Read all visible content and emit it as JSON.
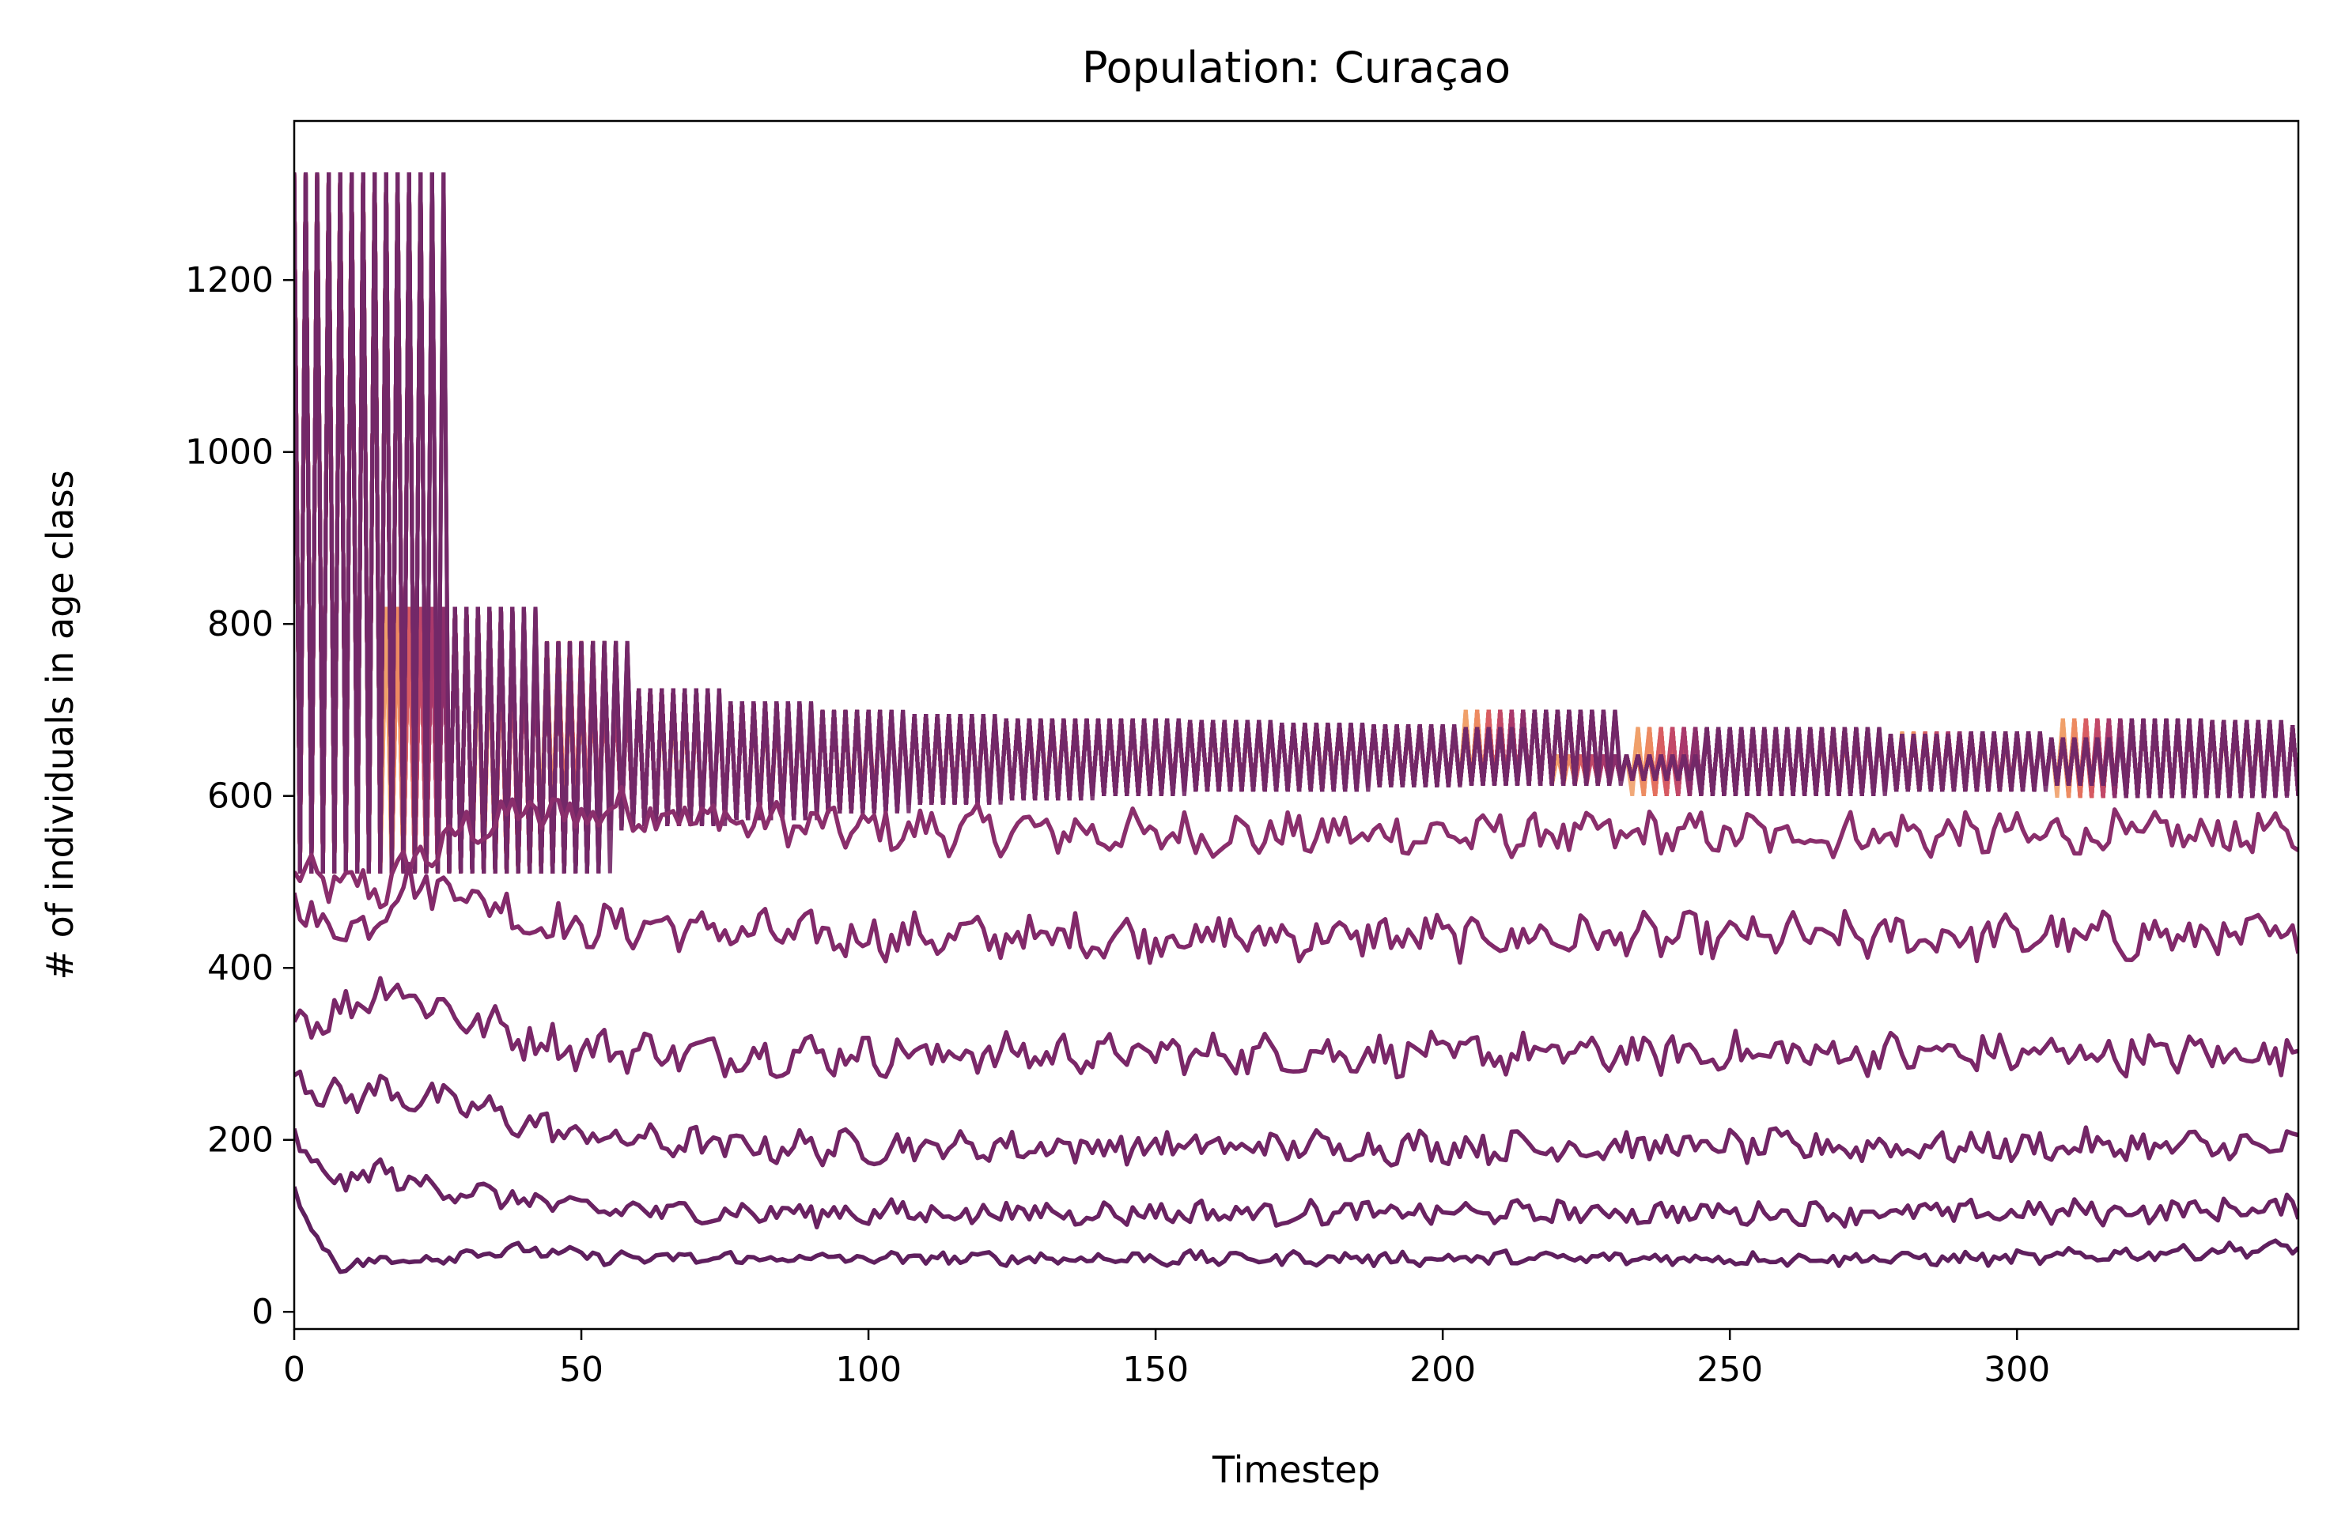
{
  "chart_data": {
    "type": "line",
    "title": "Population: Curaçao",
    "xlabel": "Timestep",
    "ylabel": "# of individuals in age class",
    "xlim": [
      0,
      349
    ],
    "ylim": [
      -20,
      1385
    ],
    "xticks": [
      0,
      50,
      100,
      150,
      200,
      250,
      300
    ],
    "yticks": [
      0,
      200,
      400,
      600,
      800,
      1000,
      1200
    ],
    "grid": false,
    "legend": "none",
    "colormap": "flare (light orange #ee8a62 to dark purple #5a2060)",
    "upper_band": {
      "description": "many overlapping age-class series forming a stepped band",
      "x": [
        0,
        12,
        15,
        27,
        31,
        43,
        47,
        57,
        63,
        75,
        79,
        91,
        95,
        107,
        111,
        123,
        127,
        139,
        143,
        155,
        159,
        171,
        175,
        187,
        191,
        199,
        203,
        212,
        219,
        228,
        233,
        246,
        251,
        260,
        265,
        273,
        279,
        287,
        293,
        300,
        307,
        317,
        321,
        330,
        335,
        343,
        349
      ],
      "top": [
        1325,
        1325,
        820,
        820,
        780,
        780,
        725,
        725,
        710,
        710,
        700,
        700,
        695,
        695,
        690,
        690,
        690,
        690,
        688,
        688,
        685,
        685,
        683,
        683,
        680,
        680,
        700,
        700,
        648,
        648,
        680,
        680,
        680,
        680,
        672,
        672,
        675,
        675,
        668,
        668,
        690,
        690,
        688,
        688,
        682,
        682,
        682
      ],
      "bottom": [
        510,
        510,
        510,
        510,
        510,
        560,
        565,
        565,
        572,
        572,
        580,
        580,
        590,
        590,
        595,
        595,
        600,
        600,
        605,
        605,
        605,
        605,
        610,
        610,
        612,
        612,
        612,
        612,
        618,
        618,
        600,
        600,
        600,
        600,
        605,
        605,
        605,
        605,
        612,
        612,
        598,
        598,
        598,
        598,
        600,
        600,
        600
      ]
    },
    "series": [
      {
        "baseline_x": [
          0,
          15,
          20,
          30,
          40,
          50,
          60,
          70,
          80,
          90,
          100,
          125,
          150,
          200,
          250,
          300,
          349
        ],
        "baseline_y": [
          505,
          490,
          520,
          560,
          580,
          580,
          585,
          575,
          570,
          565,
          560,
          560,
          555,
          555,
          555,
          555,
          555
        ],
        "noise": 22
      },
      {
        "baseline_x": [
          0,
          10,
          15,
          20,
          30,
          40,
          50,
          60,
          70,
          80,
          90,
          100,
          125,
          150,
          200,
          250,
          300,
          349
        ],
        "baseline_y": [
          470,
          440,
          470,
          500,
          490,
          455,
          445,
          450,
          445,
          440,
          438,
          436,
          436,
          436,
          436,
          436,
          436,
          436
        ],
        "noise": 22
      },
      {
        "baseline_x": [
          0,
          5,
          10,
          15,
          20,
          30,
          40,
          50,
          60,
          70,
          80,
          90,
          100,
          125,
          150,
          200,
          250,
          300,
          349
        ],
        "baseline_y": [
          350,
          340,
          355,
          380,
          370,
          340,
          320,
          305,
          305,
          300,
          300,
          300,
          300,
          300,
          300,
          300,
          300,
          300,
          300
        ],
        "noise": 20
      },
      {
        "baseline_x": [
          0,
          5,
          10,
          15,
          20,
          30,
          40,
          50,
          60,
          70,
          80,
          100,
          125,
          150,
          200,
          250,
          300,
          349
        ],
        "baseline_y": [
          290,
          250,
          250,
          260,
          250,
          240,
          220,
          205,
          200,
          195,
          192,
          192,
          192,
          192,
          192,
          192,
          192,
          192
        ],
        "noise": 16
      },
      {
        "baseline_x": [
          0,
          3,
          8,
          15,
          20,
          30,
          40,
          50,
          60,
          70,
          80,
          100,
          125,
          150,
          200,
          250,
          300,
          349
        ],
        "baseline_y": [
          210,
          170,
          150,
          165,
          150,
          140,
          130,
          120,
          118,
          116,
          115,
          115,
          115,
          115,
          115,
          115,
          115,
          120
        ],
        "noise": 12
      },
      {
        "baseline_x": [
          0,
          3,
          8,
          12,
          15,
          20,
          30,
          40,
          50,
          60,
          70,
          80,
          100,
          125,
          150,
          200,
          250,
          300,
          349
        ],
        "baseline_y": [
          150,
          90,
          55,
          55,
          60,
          60,
          68,
          72,
          65,
          62,
          62,
          62,
          62,
          62,
          62,
          62,
          62,
          62,
          75
        ],
        "noise": 7
      }
    ]
  }
}
